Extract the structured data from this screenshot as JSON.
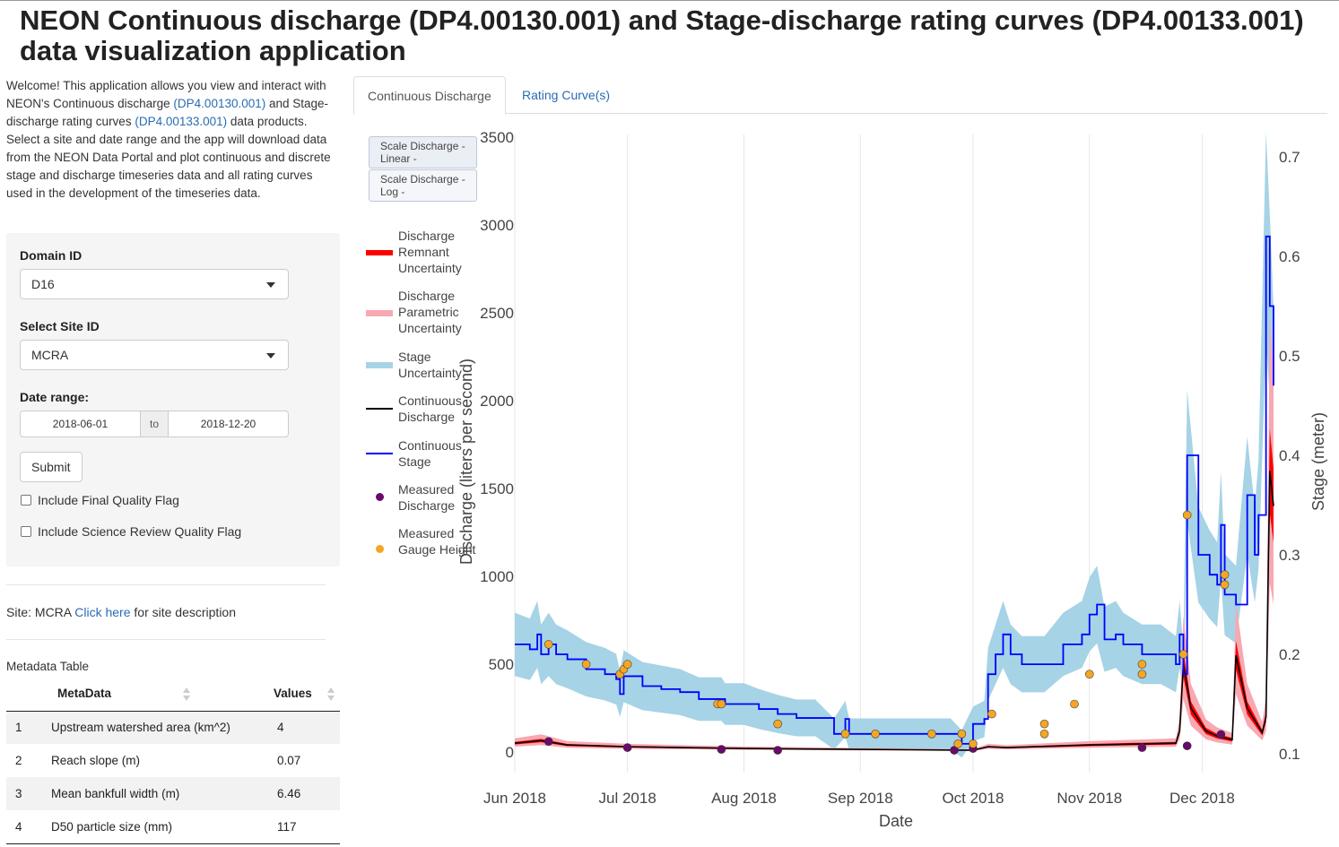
{
  "title": "NEON Continuous discharge (DP4.00130.001) and Stage-discharge rating curves (DP4.00133.001) data visualization application",
  "intro": {
    "p1": "Welcome! This application allows you view and interact with NEON's Continuous discharge ",
    "link1": "(DP4.00130.001)",
    "p2": " and Stage-discharge rating curves ",
    "link2": "(DP4.00133.001)",
    "p3": " data products. Select a site and date range and the app will download data from the NEON Data Portal and plot continuous and discrete stage and discharge timeseries data and all rating curves used in the development of the timeseries data."
  },
  "form": {
    "domain_label": "Domain ID",
    "domain_value": "D16",
    "site_label": "Select Site ID",
    "site_value": "MCRA",
    "date_label": "Date range:",
    "date_start": "2018-06-01",
    "date_to": "to",
    "date_end": "2018-12-20",
    "submit": "Submit",
    "flag_final": "Include Final Quality Flag",
    "flag_review": "Include Science Review Quality Flag"
  },
  "site": {
    "prefix": "Site: MCRA ",
    "link": "Click here",
    "suffix": " for site description"
  },
  "metadata": {
    "title": "Metadata Table",
    "col_name": "MetaData",
    "col_value": "Values",
    "rows": [
      {
        "idx": "1",
        "name": "Upstream watershed area (km^2)",
        "value": "4"
      },
      {
        "idx": "2",
        "name": "Reach slope (m)",
        "value": "0.07"
      },
      {
        "idx": "3",
        "name": "Mean bankfull width (m)",
        "value": "6.46"
      },
      {
        "idx": "4",
        "name": "D50 particle size (mm)",
        "value": "117"
      }
    ]
  },
  "tabs": [
    "Continuous Discharge",
    "Rating Curve(s)"
  ],
  "scale_buttons": [
    "Scale Discharge - Linear -",
    "Scale Discharge - Log -"
  ],
  "colors": {
    "remnant": "#ff0000",
    "parametric": "#f7a9b2",
    "stage_unc": "#a6d3e6",
    "discharge": "#000000",
    "stage": "#0000ff",
    "measured_q": "#6a0a6a",
    "measured_h": "#f5a623"
  },
  "chart_data": {
    "type": "line",
    "xlabel": "Date",
    "ylabel": "Discharge (liters per second)",
    "y2label": "Stage (meter)",
    "x_ticks": [
      "Jun 2018",
      "Jul 2018",
      "Aug 2018",
      "Sep 2018",
      "Oct 2018",
      "Nov 2018",
      "Dec 2018"
    ],
    "x_range": [
      "2018-06-01",
      "2018-12-20"
    ],
    "ylim": [
      0,
      3500
    ],
    "y_ticks": [
      0,
      500,
      1000,
      1500,
      2000,
      2500,
      3000,
      3500
    ],
    "y2_ticks": [
      0.1,
      0.2,
      0.3,
      0.4,
      0.5,
      0.6,
      0.7
    ],
    "legend": [
      "Discharge Remnant Uncertainty",
      "Discharge Parametric Uncertainty",
      "Stage Uncertainty",
      "Continuous Discharge",
      "Continuous Stage",
      "Measured Discharge",
      "Measured Gauge Height"
    ],
    "continuous_stage": {
      "dates": [
        "2018-06-01",
        "2018-06-05",
        "2018-06-07",
        "2018-06-08",
        "2018-06-10",
        "2018-06-12",
        "2018-06-15",
        "2018-06-20",
        "2018-06-25",
        "2018-06-28",
        "2018-06-29",
        "2018-06-30",
        "2018-07-05",
        "2018-07-10",
        "2018-07-15",
        "2018-07-20",
        "2018-07-26",
        "2018-07-27",
        "2018-08-01",
        "2018-08-05",
        "2018-08-10",
        "2018-08-15",
        "2018-08-20",
        "2018-08-25",
        "2018-08-28",
        "2018-08-29",
        "2018-09-01",
        "2018-09-10",
        "2018-09-20",
        "2018-09-25",
        "2018-09-28",
        "2018-10-01",
        "2018-10-04",
        "2018-10-05",
        "2018-10-07",
        "2018-10-09",
        "2018-10-11",
        "2018-10-14",
        "2018-10-20",
        "2018-10-25",
        "2018-10-30",
        "2018-11-01",
        "2018-11-03",
        "2018-11-05",
        "2018-11-08",
        "2018-11-10",
        "2018-11-15",
        "2018-11-20",
        "2018-11-24",
        "2018-11-25",
        "2018-11-26",
        "2018-11-27",
        "2018-11-30",
        "2018-12-03",
        "2018-12-05",
        "2018-12-06",
        "2018-12-07",
        "2018-12-10",
        "2018-12-13",
        "2018-12-15",
        "2018-12-16",
        "2018-12-18",
        "2018-12-19",
        "2018-12-20"
      ],
      "values": [
        0.21,
        0.205,
        0.22,
        0.2,
        0.21,
        0.2,
        0.195,
        0.185,
        0.18,
        0.175,
        0.16,
        0.178,
        0.168,
        0.165,
        0.162,
        0.155,
        0.155,
        0.15,
        0.15,
        0.145,
        0.14,
        0.136,
        0.136,
        0.12,
        0.135,
        0.12,
        0.12,
        0.12,
        0.12,
        0.12,
        0.11,
        0.13,
        0.135,
        0.18,
        0.2,
        0.22,
        0.2,
        0.19,
        0.19,
        0.21,
        0.22,
        0.24,
        0.25,
        0.215,
        0.22,
        0.21,
        0.2,
        0.2,
        0.19,
        0.22,
        0.18,
        0.4,
        0.3,
        0.28,
        0.27,
        0.33,
        0.26,
        0.25,
        0.36,
        0.3,
        0.34,
        0.62,
        0.55,
        0.47
      ]
    },
    "continuous_discharge": {
      "dates": [
        "2018-06-01",
        "2018-06-08",
        "2018-06-15",
        "2018-07-01",
        "2018-08-01",
        "2018-09-01",
        "2018-10-01",
        "2018-10-05",
        "2018-10-10",
        "2018-11-01",
        "2018-11-24",
        "2018-11-25",
        "2018-11-26",
        "2018-11-28",
        "2018-12-02",
        "2018-12-05",
        "2018-12-07",
        "2018-12-09",
        "2018-12-10",
        "2018-12-13",
        "2018-12-17",
        "2018-12-18",
        "2018-12-19",
        "2018-12-20"
      ],
      "values": [
        50,
        65,
        40,
        30,
        20,
        15,
        10,
        30,
        25,
        40,
        50,
        120,
        500,
        250,
        120,
        90,
        80,
        70,
        550,
        250,
        110,
        200,
        1600,
        1400
      ]
    },
    "measured_discharge": {
      "dates": [
        "2018-06-10",
        "2018-07-01",
        "2018-07-26",
        "2018-08-10",
        "2018-09-26",
        "2018-10-01",
        "2018-11-15",
        "2018-11-27",
        "2018-12-06"
      ],
      "values": [
        60,
        25,
        15,
        10,
        10,
        20,
        25,
        35,
        100
      ]
    },
    "measured_gauge_height": {
      "dates": [
        "2018-06-10",
        "2018-06-20",
        "2018-06-29",
        "2018-06-30",
        "2018-07-01",
        "2018-07-25",
        "2018-07-26",
        "2018-08-10",
        "2018-08-28",
        "2018-09-05",
        "2018-09-20",
        "2018-09-27",
        "2018-09-28",
        "2018-10-01",
        "2018-10-06",
        "2018-10-20",
        "2018-10-20",
        "2018-10-28",
        "2018-11-01",
        "2018-11-15",
        "2018-11-15",
        "2018-11-26",
        "2018-11-27",
        "2018-12-07",
        "2018-12-07"
      ],
      "values": [
        0.21,
        0.19,
        0.18,
        0.185,
        0.19,
        0.15,
        0.15,
        0.13,
        0.12,
        0.12,
        0.12,
        0.11,
        0.12,
        0.11,
        0.14,
        0.13,
        0.12,
        0.15,
        0.18,
        0.19,
        0.18,
        0.2,
        0.34,
        0.27,
        0.28
      ]
    }
  }
}
